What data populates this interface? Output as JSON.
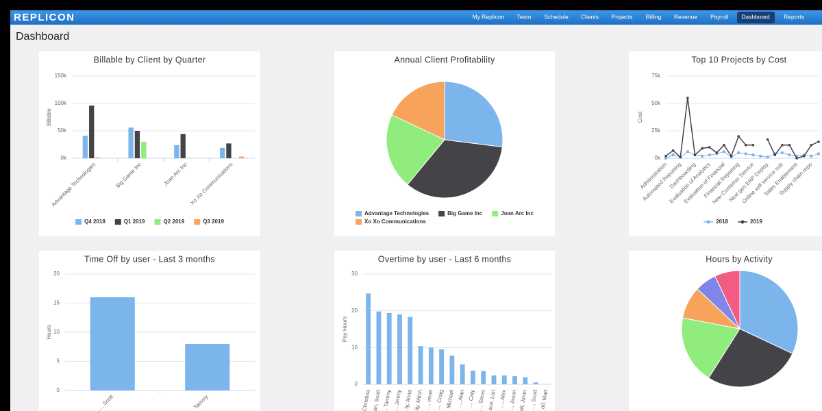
{
  "header": {
    "logo": "REPLICON",
    "nav": [
      "My Replicon",
      "Team",
      "Schedule",
      "Clients",
      "Projects",
      "Billing",
      "Revenue",
      "Payroll",
      "Dashboard",
      "Reports"
    ],
    "active_nav": 8,
    "page_title": "Dashboard"
  },
  "chart_data": [
    {
      "type": "bar",
      "title": "Billable by Client by Quarter",
      "ylabel": "Billable",
      "categories": [
        "Advantage Technologies",
        "Big Game Inc",
        "Joan Arc Inc",
        "Xo Xo Communications"
      ],
      "series": [
        {
          "name": "Q4 2018",
          "color": "#7cb5ec",
          "values": [
            41000,
            56000,
            24000,
            19000
          ]
        },
        {
          "name": "Q1 2019",
          "color": "#434348",
          "values": [
            96000,
            50000,
            44000,
            27000
          ]
        },
        {
          "name": "Q2 2019",
          "color": "#90ed7d",
          "values": [
            2000,
            30000,
            1000,
            0
          ]
        },
        {
          "name": "Q3 2019",
          "color": "#f7a35c",
          "values": [
            0,
            0,
            0,
            3000
          ]
        }
      ],
      "ylim": [
        0,
        150000
      ],
      "yticks": [
        {
          "value": 0,
          "label": "0k"
        },
        {
          "value": 50000,
          "label": "50k"
        },
        {
          "value": 100000,
          "label": "100k"
        },
        {
          "value": 150000,
          "label": "150k"
        }
      ],
      "grid": true,
      "legend": "bottom"
    },
    {
      "type": "pie",
      "title": "Annual Client Profitability",
      "categories": [
        "Advantage Technologies",
        "Big Game Inc",
        "Joan Arc Inc",
        "Xo Xo Communications"
      ],
      "values": [
        27,
        34,
        21,
        18
      ],
      "colors": [
        "#7cb5ec",
        "#434348",
        "#90ed7d",
        "#f7a35c"
      ],
      "legend": "bottom"
    },
    {
      "type": "line",
      "title": "Top 10 Projects by Cost",
      "ylabel": "Cost",
      "categories": [
        "Administration",
        null,
        "Automated Reporting",
        null,
        "Dashboarding",
        null,
        "Evaluation of Analytics",
        null,
        "Evaluation of Financial",
        null,
        "Financial Reporting",
        null,
        "New Customer Service",
        null,
        "Next gen ERP Deploy",
        null,
        "Online self service sub",
        null,
        "Sales Enablement",
        null,
        "Supply chain repo",
        null
      ],
      "series": [
        {
          "name": "2018",
          "color": "#7cb5ec",
          "values": [
            0,
            3000,
            1000,
            6000,
            3000,
            2000,
            3000,
            4000,
            6000,
            1000,
            5000,
            4000,
            3000,
            2000,
            1000,
            4000,
            5000,
            3000,
            2000,
            3000,
            2000,
            4000
          ]
        },
        {
          "name": "2019",
          "color": "#434348",
          "values": [
            2000,
            7000,
            1000,
            55000,
            3000,
            9000,
            10000,
            5000,
            12000,
            2000,
            20000,
            12000,
            12000,
            null,
            17000,
            3000,
            12000,
            12000,
            0,
            2000,
            12000,
            15000
          ]
        }
      ],
      "ylim": [
        0,
        75000
      ],
      "yticks": [
        {
          "value": 0,
          "label": "0k"
        },
        {
          "value": 25000,
          "label": "25k"
        },
        {
          "value": 50000,
          "label": "50k"
        },
        {
          "value": 75000,
          "label": "75k"
        }
      ],
      "grid": true,
      "legend": "bottom"
    },
    {
      "type": "bar",
      "title": "Time Off by user - Last 3 months",
      "ylabel": "Hours",
      "categories": [
        "..., Scott",
        "Tammy"
      ],
      "values": [
        16,
        8
      ],
      "color": "#7cb5ec",
      "ylim": [
        0,
        20
      ],
      "yticks": [
        0,
        5,
        10,
        15,
        20
      ],
      "grid": true
    },
    {
      "type": "bar",
      "title": "Overtime by user - Last 6 months",
      "ylabel": "Pay Hours",
      "categories": [
        "Christina",
        "...an, Scott",
        "..., Tammy",
        "..., Jimmy",
        "...ly, Anna",
        "...ily, Mitch",
        "..., Irene",
        "..., Craig",
        "Michael",
        "..., Alan",
        "..., Caty",
        "..., Steve",
        "...ace, Lori",
        "..., Alex",
        "..., Jason",
        "...all, Jimm",
        "..., Scott",
        "...olf, Matt"
      ],
      "values": [
        24.7,
        19.8,
        19.4,
        19,
        18.3,
        10.4,
        10,
        9.5,
        7.8,
        5.4,
        3.7,
        3.6,
        2.4,
        2.4,
        2.2,
        1.9,
        0.5,
        0
      ],
      "color": "#7cb5ec",
      "ylim": [
        0,
        30
      ],
      "yticks": [
        0,
        10,
        20,
        30
      ],
      "grid": true
    },
    {
      "type": "pie",
      "title": "Hours by Activity",
      "values": [
        32,
        27,
        19,
        9,
        6,
        7
      ],
      "colors": [
        "#7cb5ec",
        "#434348",
        "#90ed7d",
        "#f7a35c",
        "#8085e9",
        "#f15c80"
      ]
    }
  ]
}
